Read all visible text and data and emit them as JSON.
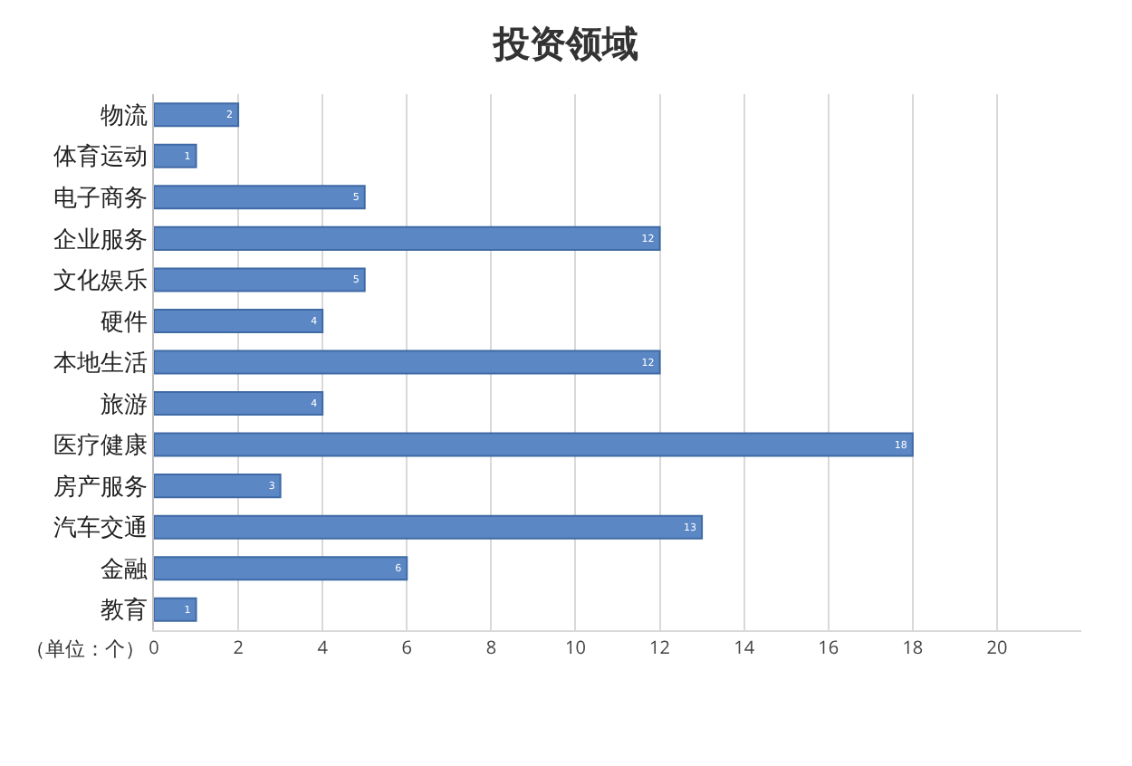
{
  "chart_data": {
    "type": "bar",
    "orientation": "horizontal",
    "title": "投资领域",
    "categories": [
      "物流",
      "体育运动",
      "电子商务",
      "企业服务",
      "文化娱乐",
      "硬件",
      "本地生活",
      "旅游",
      "医疗健康",
      "房产服务",
      "汽车交通",
      "金融",
      "教育"
    ],
    "values": [
      2,
      1,
      5,
      12,
      5,
      4,
      12,
      4,
      18,
      3,
      13,
      6,
      1
    ],
    "color": "#5b87c5",
    "xlim": [
      0,
      22
    ],
    "xticks": [
      0,
      2,
      4,
      6,
      8,
      10,
      12,
      14,
      16,
      18,
      20
    ],
    "grid": "x",
    "legend": false,
    "data_labels": true,
    "annotations": [
      "（单位：个）"
    ]
  }
}
